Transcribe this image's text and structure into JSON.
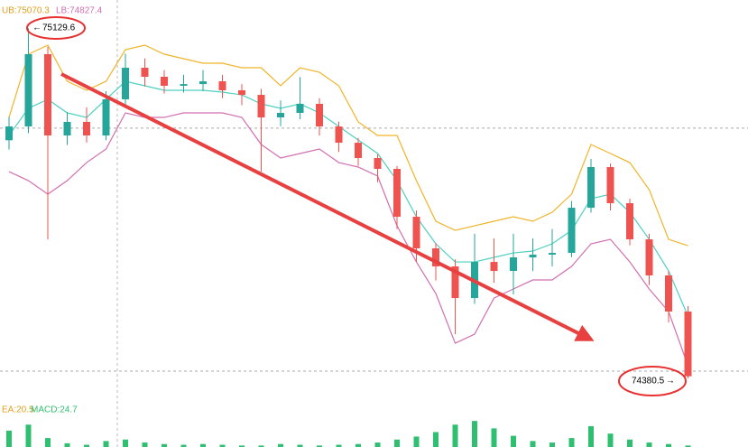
{
  "chart_data": {
    "type": "candlestick",
    "header": {
      "ub": "UB:75070.3",
      "lb": "LB:74827.4"
    },
    "footer": {
      "ea": "EA:20.5",
      "macd": "MACD:24.7"
    },
    "max_label": 75129.6,
    "min_label": 74380.5,
    "ylim": [
      74340,
      75190
    ],
    "ref_lines": [
      74916,
      74396
    ],
    "up_color": "#26a69a",
    "down_color": "#ef5350",
    "open": [
      74890.0,
      74919.5,
      75074.1,
      74900.2,
      74929.2,
      74900.2,
      74977.5,
      75045.1,
      75025.8,
      75006.5,
      75010.2,
      75016.1,
      74996.8,
      74987.1,
      74938.8,
      74948.5,
      74967.8,
      74919.5,
      74884.7,
      74851.9,
      74828.7,
      74726.3,
      74658.7,
      74620.1,
      74552.4,
      74629.7,
      74610.4,
      74639.4,
      74645.2,
      74649.0,
      74745.6,
      74832.6,
      74755.3,
      74678.0,
      74600.8,
      74523.5
    ],
    "high": [
      74940,
      75129.6,
      75090,
      74950,
      74960,
      74995,
      75075,
      75065,
      75040,
      75030,
      75040,
      75030,
      75010,
      75000,
      74975,
      75025,
      74980,
      74930,
      74895,
      74860,
      74835,
      74740,
      74670,
      74635,
      74690,
      74680,
      74690,
      74680,
      74700,
      74760,
      74850,
      74840,
      74765,
      74690,
      74610,
      74535
    ],
    "low": [
      74870,
      74905,
      74678.0,
      74880,
      74885,
      74890,
      74965,
      75005,
      74990,
      74992,
      74995,
      74980,
      74965,
      74822.9,
      74920,
      74935,
      74900,
      74865,
      74835,
      74800,
      74700,
      74630,
      74590,
      74475.2,
      74540,
      74585,
      74560,
      74610,
      74620,
      74640,
      74735,
      74740,
      74665,
      74580,
      74500,
      74380.5
    ],
    "close": [
      74919.5,
      75074.1,
      74900.2,
      74929.2,
      74900.2,
      74977.5,
      75045.1,
      75025.8,
      75006.5,
      75010.2,
      75016.1,
      74996.8,
      74987.1,
      74938.8,
      74948.5,
      74967.8,
      74919.5,
      74884.7,
      74851.9,
      74828.7,
      74726.3,
      74658.7,
      74620.1,
      74552.4,
      74629.7,
      74610.4,
      74639.4,
      74645.2,
      74649.0,
      74745.6,
      74832.6,
      74755.3,
      74678.0,
      74600.8,
      74523.5,
      74385.0
    ],
    "bands": [
      {
        "color": "#f0b429",
        "values": [
          74938.8,
          75074.1,
          75093.4,
          75016.1,
          74996.8,
          75016.1,
          75083.7,
          75093.4,
          75074.1,
          75064.4,
          75054.8,
          75054.8,
          75045.1,
          75045.1,
          75006.5,
          75045.1,
          75035.4,
          75006.5,
          74929.2,
          74900.2,
          74900.2,
          74803.6,
          74716.7,
          74697.3,
          74707.0,
          74716.7,
          74726.3,
          74716.7,
          74736.0,
          74774.6,
          74880.9,
          74861.6,
          74842.2,
          74784.3,
          74678.0,
          74664.5
        ]
      },
      {
        "color": "#4dd0c0",
        "values": [
          74900.2,
          74958.2,
          74977.5,
          74948.5,
          74938.8,
          74977.5,
          75016.1,
          75006.5,
          74996.8,
          74996.8,
          74996.8,
          74992.9,
          74987.1,
          74967.8,
          74958.2,
          74967.8,
          74948.5,
          74919.5,
          74890.5,
          74861.6,
          74803.6,
          74726.3,
          74668.4,
          74629.7,
          74629.7,
          74639.4,
          74649.0,
          74652.9,
          74668.4,
          74697.3,
          74765.0,
          74774.6,
          74736.0,
          74678.0,
          74610.4,
          74513.8
        ]
      },
      {
        "color": "#d070b0",
        "values": [
          74822.9,
          74803.6,
          74774.6,
          74803.6,
          74842.2,
          74871.2,
          74948.5,
          74938.8,
          74938.8,
          74948.5,
          74948.5,
          74948.5,
          74938.8,
          74880.9,
          74851.9,
          74861.6,
          74871.2,
          74842.2,
          74832.6,
          74813.3,
          74707.0,
          74629.7,
          74562.1,
          74455.8,
          74475.2,
          74552.4,
          74571.8,
          74591.1,
          74591.1,
          74620.1,
          74668.4,
          74678.0,
          74629.7,
          74571.8,
          74523.5,
          74407.5
        ]
      }
    ],
    "macd_hist": [
      22,
      30,
      12,
      5,
      3,
      8,
      10,
      6,
      4,
      3,
      4,
      3,
      2,
      2,
      4,
      3,
      2,
      3,
      4,
      6,
      10,
      14,
      20,
      30,
      35,
      25,
      15,
      8,
      6,
      12,
      28,
      18,
      10,
      6,
      4,
      2
    ],
    "macd_ylim": [
      0,
      40
    ],
    "macd_color": "#2fbf71"
  }
}
